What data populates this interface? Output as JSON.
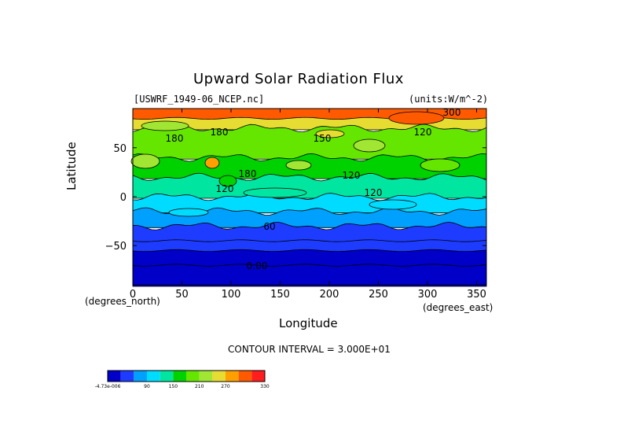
{
  "chart_data": {
    "type": "heatmap",
    "title": "Upward Solar Radiation Flux",
    "file_label": "[USWRF_1949-06_NCEP.nc]",
    "units_label": "(units:W/m^-2)",
    "xlabel": "Longitude",
    "ylabel": "Latitude",
    "x_unit_label": "(degrees_east)",
    "y_unit_label": "(degrees_north)",
    "xlim": [
      0,
      360
    ],
    "ylim": [
      -90,
      90
    ],
    "x_ticks": [
      "0",
      "50",
      "100",
      "150",
      "200",
      "250",
      "300",
      "350"
    ],
    "y_ticks": [
      "50",
      "0",
      "−50"
    ],
    "contour_interval_text": "CONTOUR INTERVAL = 3.000E+01",
    "contour_labels": [
      "300",
      "180",
      "180",
      "120",
      "150",
      "120",
      "120",
      "120",
      "180",
      "60",
      "0.00"
    ],
    "colorbar": {
      "tick_labels": [
        "-4.73e-006",
        "90",
        "150",
        "210",
        "270",
        "330"
      ],
      "colors": [
        "#0000c8",
        "#1e3cff",
        "#00a0ff",
        "#00dcff",
        "#00e6a0",
        "#00d200",
        "#64e600",
        "#a0e632",
        "#e6dc32",
        "#ffa000",
        "#ff5a00",
        "#ff1e1e"
      ]
    },
    "latitude_bands": [
      {
        "lat_max": 90,
        "lat_min": 80,
        "value": 300
      },
      {
        "lat_max": 80,
        "lat_min": 70,
        "value": 240
      },
      {
        "lat_max": 70,
        "lat_min": 40,
        "value": 180
      },
      {
        "lat_max": 40,
        "lat_min": 20,
        "value": 160
      },
      {
        "lat_max": 20,
        "lat_min": 0,
        "value": 130
      },
      {
        "lat_max": 0,
        "lat_min": -15,
        "value": 100
      },
      {
        "lat_max": -15,
        "lat_min": -30,
        "value": 80
      },
      {
        "lat_max": -30,
        "lat_min": -45,
        "value": 50
      },
      {
        "lat_max": -45,
        "lat_min": -55,
        "value": 30
      },
      {
        "lat_max": -55,
        "lat_min": -70,
        "value": 10
      },
      {
        "lat_max": -70,
        "lat_min": -90,
        "value": 0
      }
    ]
  }
}
